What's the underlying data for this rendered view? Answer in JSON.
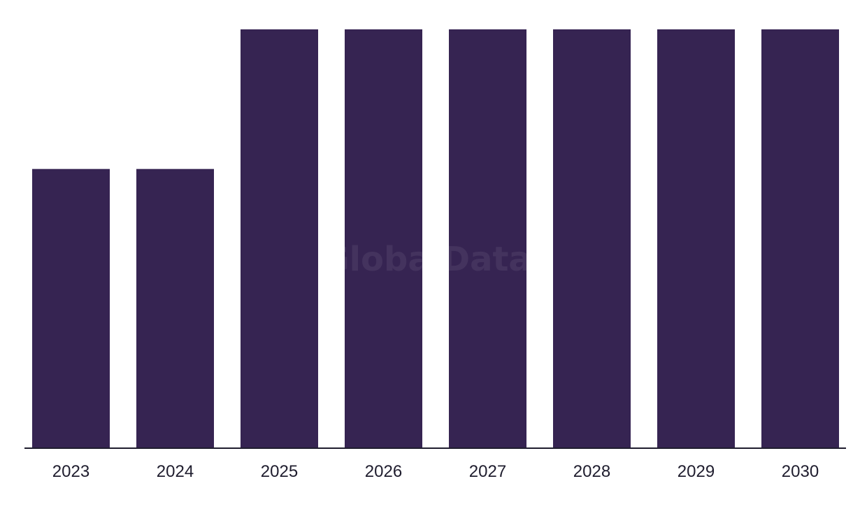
{
  "chart_data": {
    "type": "bar",
    "categories": [
      "2023",
      "2024",
      "2025",
      "2026",
      "2027",
      "2028",
      "2029",
      "2030"
    ],
    "values": [
      2,
      2,
      3,
      3,
      3,
      3,
      3,
      3
    ],
    "ylim": [
      0,
      3
    ],
    "grid": false,
    "legend": "none",
    "title": "",
    "xlabel": "",
    "ylabel": ""
  },
  "watermark": "GlobalData",
  "colors": {
    "bar": "#362452",
    "axis": "#1f1d2e",
    "watermark": "#ffffff"
  }
}
